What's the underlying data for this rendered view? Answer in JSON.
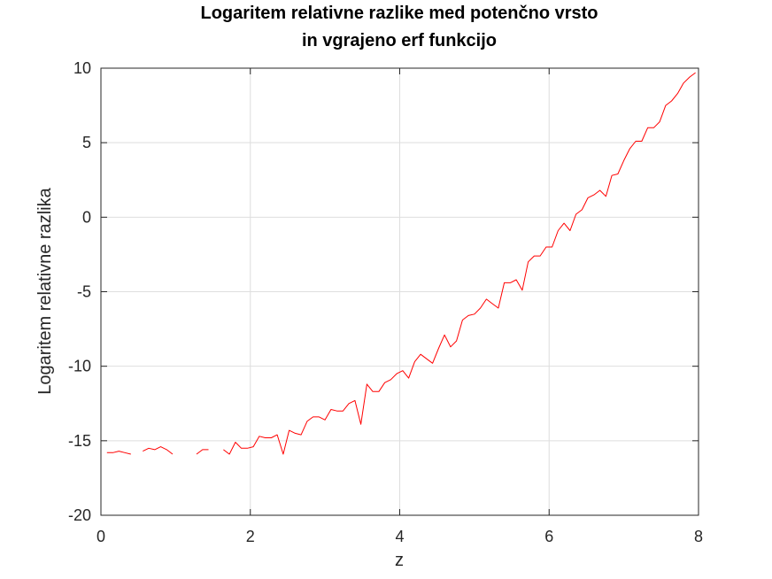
{
  "chart_data": {
    "type": "line",
    "title": [
      "Logaritem relativne razlike med potenčno vrsto",
      "in vgrajeno erf funkcijo"
    ],
    "xlabel": "z",
    "ylabel": "Logaritem relativne razlika",
    "xlim": [
      0,
      8
    ],
    "ylim": [
      -20,
      10
    ],
    "xticks": [
      0,
      2,
      4,
      6,
      8
    ],
    "xtick_labels": [
      "0",
      "2",
      "4",
      "6",
      "8"
    ],
    "yticks": [
      -20,
      -15,
      -10,
      -5,
      0,
      5,
      10
    ],
    "ytick_labels": [
      "-20",
      "-15",
      "-10",
      "-5",
      "0",
      "5",
      "10"
    ],
    "grid": true,
    "series": [
      {
        "color": "#ff0000",
        "segments": [
          [
            [
              0.08,
              -15.8
            ],
            [
              0.16,
              -15.8
            ],
            [
              0.24,
              -15.7
            ],
            [
              0.32,
              -15.8
            ],
            [
              0.4,
              -15.9
            ]
          ],
          [
            [
              0.56,
              -15.7
            ],
            [
              0.64,
              -15.5
            ],
            [
              0.72,
              -15.6
            ],
            [
              0.8,
              -15.4
            ],
            [
              0.88,
              -15.6
            ],
            [
              0.96,
              -15.9
            ]
          ],
          [
            [
              1.28,
              -15.9
            ],
            [
              1.36,
              -15.6
            ],
            [
              1.44,
              -15.6
            ]
          ],
          [
            [
              1.64,
              -15.6
            ],
            [
              1.72,
              -15.9
            ],
            [
              1.8,
              -15.1
            ],
            [
              1.88,
              -15.5
            ],
            [
              1.96,
              -15.5
            ],
            [
              2.04,
              -15.4
            ],
            [
              2.12,
              -14.7
            ],
            [
              2.2,
              -14.8
            ],
            [
              2.28,
              -14.8
            ],
            [
              2.36,
              -14.6
            ],
            [
              2.44,
              -15.9
            ],
            [
              2.52,
              -14.3
            ],
            [
              2.6,
              -14.5
            ],
            [
              2.68,
              -14.6
            ],
            [
              2.76,
              -13.7
            ],
            [
              2.84,
              -13.4
            ],
            [
              2.92,
              -13.4
            ],
            [
              3.0,
              -13.6
            ],
            [
              3.08,
              -12.9
            ],
            [
              3.16,
              -13.0
            ],
            [
              3.24,
              -13.0
            ],
            [
              3.32,
              -12.5
            ],
            [
              3.4,
              -12.3
            ],
            [
              3.48,
              -13.9
            ],
            [
              3.56,
              -11.2
            ],
            [
              3.64,
              -11.7
            ],
            [
              3.72,
              -11.7
            ],
            [
              3.8,
              -11.1
            ],
            [
              3.88,
              -10.9
            ],
            [
              3.96,
              -10.5
            ],
            [
              4.04,
              -10.3
            ],
            [
              4.12,
              -10.8
            ],
            [
              4.2,
              -9.7
            ],
            [
              4.28,
              -9.2
            ],
            [
              4.36,
              -9.5
            ],
            [
              4.44,
              -9.8
            ],
            [
              4.52,
              -8.8
            ],
            [
              4.6,
              -7.9
            ],
            [
              4.68,
              -8.7
            ],
            [
              4.76,
              -8.3
            ],
            [
              4.84,
              -6.9
            ],
            [
              4.92,
              -6.6
            ],
            [
              5.0,
              -6.5
            ],
            [
              5.08,
              -6.1
            ],
            [
              5.16,
              -5.5
            ],
            [
              5.24,
              -5.8
            ],
            [
              5.32,
              -6.1
            ],
            [
              5.4,
              -4.4
            ],
            [
              5.48,
              -4.4
            ],
            [
              5.56,
              -4.2
            ],
            [
              5.64,
              -4.9
            ],
            [
              5.72,
              -3.0
            ],
            [
              5.8,
              -2.6
            ],
            [
              5.88,
              -2.6
            ],
            [
              5.96,
              -2.0
            ],
            [
              6.04,
              -2.0
            ],
            [
              6.12,
              -0.9
            ],
            [
              6.2,
              -0.4
            ],
            [
              6.28,
              -0.9
            ],
            [
              6.36,
              0.2
            ],
            [
              6.44,
              0.5
            ],
            [
              6.52,
              1.3
            ],
            [
              6.6,
              1.5
            ],
            [
              6.68,
              1.8
            ],
            [
              6.76,
              1.4
            ],
            [
              6.84,
              2.8
            ],
            [
              6.92,
              2.9
            ],
            [
              7.0,
              3.8
            ],
            [
              7.08,
              4.6
            ],
            [
              7.16,
              5.1
            ],
            [
              7.24,
              5.1
            ],
            [
              7.32,
              6.0
            ],
            [
              7.4,
              6.0
            ],
            [
              7.48,
              6.4
            ],
            [
              7.56,
              7.5
            ],
            [
              7.64,
              7.8
            ],
            [
              7.72,
              8.3
            ],
            [
              7.8,
              9.0
            ],
            [
              7.88,
              9.4
            ],
            [
              7.96,
              9.7
            ]
          ]
        ]
      }
    ]
  }
}
